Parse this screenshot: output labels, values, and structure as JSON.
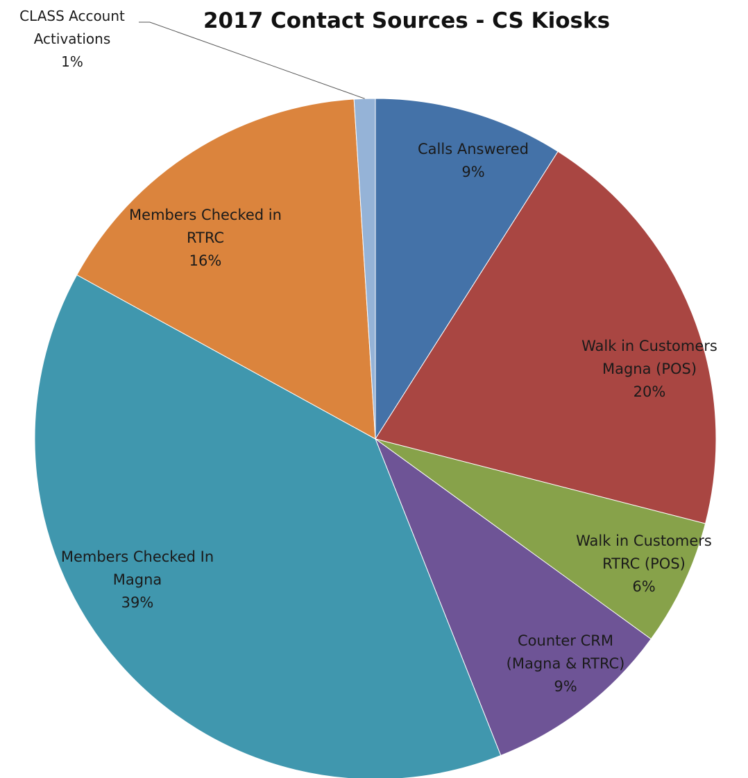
{
  "chart_data": {
    "type": "pie",
    "title": "2017 Contact Sources - CS Kiosks",
    "start_angle_deg": 0,
    "direction": "clockwise",
    "slices": [
      {
        "lines": [
          "Calls Answered",
          "9%"
        ],
        "value": 9,
        "color": "#4472A8"
      },
      {
        "lines": [
          "Walk in Customers",
          "Magna (POS)",
          "20%"
        ],
        "value": 20,
        "color": "#A94642"
      },
      {
        "lines": [
          "Walk in Customers",
          "RTRC (POS)",
          "6%"
        ],
        "value": 6,
        "color": "#87A24A"
      },
      {
        "lines": [
          "Counter CRM",
          "(Magna & RTRC)",
          "9%"
        ],
        "value": 9,
        "color": "#6E5496"
      },
      {
        "lines": [
          "Members Checked In",
          "Magna",
          "39%"
        ],
        "value": 39,
        "color": "#4097AE"
      },
      {
        "lines": [
          "Members Checked in",
          "RTRC",
          "16%"
        ],
        "value": 16,
        "color": "#DB843D"
      },
      {
        "lines": [
          "CLASS Account",
          "Activations",
          "1%"
        ],
        "value": 1,
        "color": "#95B3D7",
        "callout": true
      }
    ]
  }
}
